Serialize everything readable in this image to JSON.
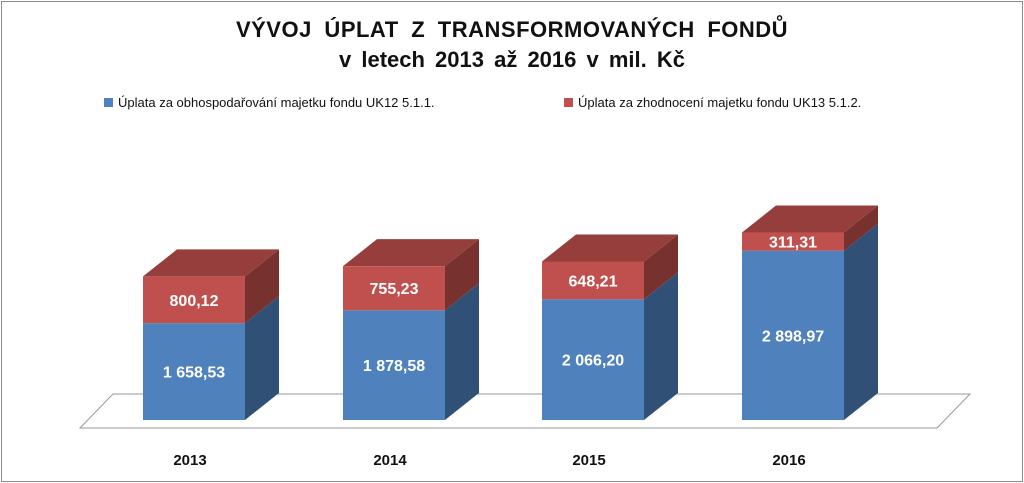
{
  "chart_data": {
    "type": "bar",
    "stacked": true,
    "style": "3d",
    "title": "VÝVOJ ÚPLAT Z TRANSFORMOVANÝCH FONDŮ",
    "subtitle": "v letech 2013 až 2016 v mil. Kč",
    "categories": [
      "2013",
      "2014",
      "2015",
      "2016"
    ],
    "series": [
      {
        "name": "Úplata za obhospodařování majetku fondu UK12 5.1.1.",
        "values": [
          1658.53,
          1878.58,
          2066.2,
          2898.97
        ],
        "labels": [
          "1 658,53",
          "1 878,58",
          "2 066,20",
          "2 898,97"
        ],
        "color": "#4f81bd"
      },
      {
        "name": "Úplata za zhodnocení majetku fondu UK13 5.1.2.",
        "values": [
          800.12,
          755.23,
          648.21,
          311.31
        ],
        "labels": [
          "800,12",
          "755,23",
          "648,21",
          "311,31"
        ],
        "color": "#c0504d"
      }
    ],
    "legend": "top",
    "grid": false
  }
}
